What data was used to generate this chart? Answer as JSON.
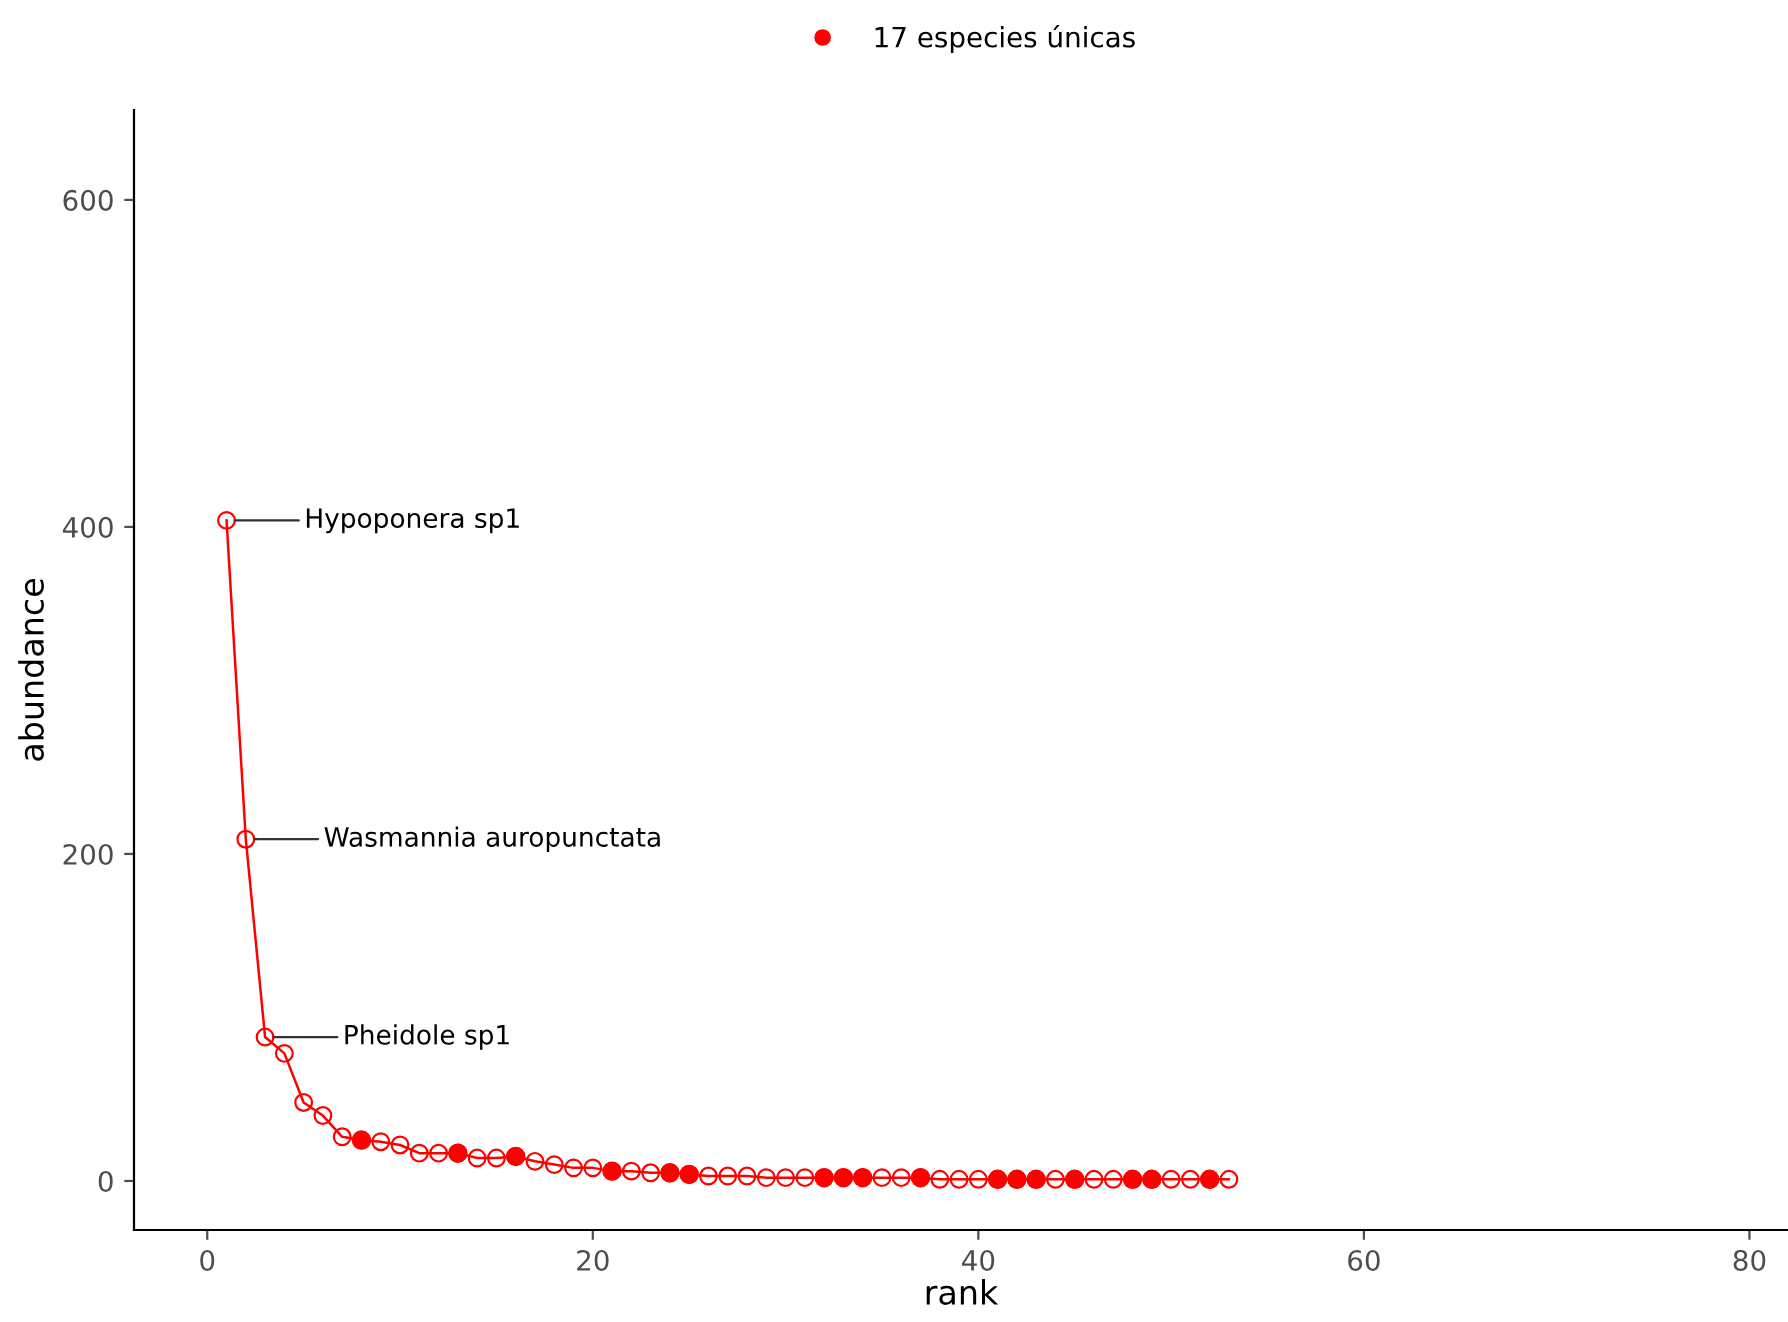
{
  "chart_data": {
    "type": "line",
    "xlabel": "rank",
    "ylabel": "abundance",
    "xlim": [
      -3.8,
      82
    ],
    "ylim": [
      -30,
      655
    ],
    "xticks": [
      0,
      20,
      40,
      60,
      80
    ],
    "yticks": [
      0,
      200,
      400,
      600
    ],
    "grid": false,
    "legend": "top",
    "marker": "circle",
    "series": [
      {
        "color": "#ff0000",
        "x": [
          1,
          2,
          3,
          4,
          5,
          6,
          7,
          8,
          9,
          10,
          11,
          12,
          13,
          14,
          15,
          16,
          17,
          18,
          19,
          20,
          21,
          22,
          23,
          24,
          25,
          26,
          27,
          28,
          29,
          30,
          31,
          32,
          33,
          34,
          35,
          36,
          37,
          38,
          39,
          40,
          41,
          42,
          43,
          44,
          45,
          46,
          47,
          48,
          49,
          50,
          51,
          52,
          53
        ],
        "values": [
          404,
          209,
          88,
          78,
          48,
          40,
          27,
          25,
          24,
          22,
          17,
          17,
          17,
          14,
          14,
          15,
          12,
          10,
          8,
          8,
          6,
          6,
          5,
          5,
          4,
          3,
          3,
          3,
          2,
          2,
          2,
          2,
          2,
          2,
          2,
          2,
          2,
          1,
          1,
          1,
          1,
          1,
          1,
          1,
          1,
          1,
          1,
          1,
          1,
          1,
          1,
          1,
          1
        ]
      },
      {
        "type": "scatter",
        "name": "17 especies únicas",
        "color": "#ff0000",
        "x": [
          8,
          13,
          16,
          21,
          24,
          25,
          32,
          33,
          34,
          37,
          41,
          42,
          43,
          45,
          48,
          49,
          52
        ],
        "values": [
          25,
          17,
          15,
          6,
          5,
          4,
          2,
          2,
          2,
          2,
          1,
          1,
          1,
          1,
          1,
          1,
          1
        ]
      }
    ],
    "annotations": [
      {
        "text": "Hypoponera sp1",
        "x": 1,
        "y": 404
      },
      {
        "text": "Wasmannia auropunctata",
        "x": 2,
        "y": 209
      },
      {
        "text": "Pheidole sp1",
        "x": 3,
        "y": 88
      }
    ]
  }
}
